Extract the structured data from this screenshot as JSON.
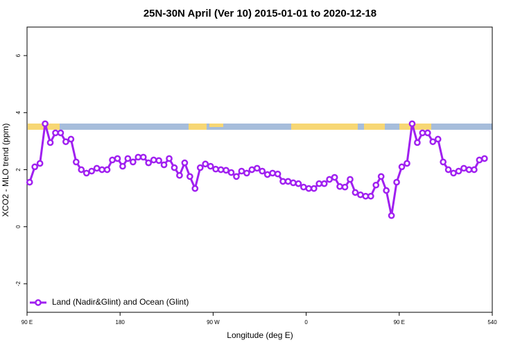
{
  "chart_data": {
    "type": "line",
    "title": "25N-30N April (Ver 10)   2015-01-01 to 2020-12-18",
    "x_label": "Longitude (deg E)",
    "y_label": "XCO2 - MLO trend (ppm)",
    "x": [
      92.5,
      97.5,
      102.5,
      107.5,
      112.5,
      117.5,
      122.5,
      127.5,
      132.5,
      137.5,
      142.5,
      147.5,
      152.5,
      157.5,
      162.5,
      167.5,
      172.5,
      177.5,
      182.5,
      187.5,
      192.5,
      197.5,
      202.5,
      207.5,
      212.5,
      217.5,
      222.5,
      227.5,
      232.5,
      237.5,
      242.5,
      247.5,
      252.5,
      257.5,
      262.5,
      267.5,
      272.5,
      277.5,
      282.5,
      287.5,
      292.5,
      297.5,
      302.5,
      307.5,
      312.5,
      317.5,
      322.5,
      327.5,
      332.5,
      337.5,
      342.5,
      347.5,
      352.5,
      357.5,
      362.5,
      367.5,
      372.5,
      377.5,
      382.5,
      387.5,
      392.5,
      397.5,
      402.5,
      407.5,
      412.5,
      417.5,
      422.5,
      427.5,
      432.5,
      437.5,
      442.5,
      447.5,
      452.5,
      457.5,
      462.5,
      467.5,
      472.5,
      477.5,
      482.5,
      487.5,
      492.5,
      497.5,
      502.5,
      507.5,
      512.5,
      517.5,
      522.5,
      527.5,
      532.5
    ],
    "series": [
      {
        "name": "Land (Nadir&Glint) and Ocean (Glint)",
        "color": "#a020f0",
        "values": [
          1.56,
          2.1,
          2.22,
          3.61,
          2.95,
          3.29,
          3.29,
          2.98,
          3.07,
          2.27,
          2.0,
          1.88,
          1.95,
          2.05,
          2.0,
          2.0,
          2.34,
          2.39,
          2.12,
          2.39,
          2.27,
          2.44,
          2.44,
          2.24,
          2.34,
          2.32,
          2.17,
          2.39,
          2.07,
          1.8,
          2.24,
          1.76,
          1.34,
          2.07,
          2.2,
          2.12,
          2.02,
          2.0,
          1.98,
          1.9,
          1.76,
          1.95,
          1.88,
          2.0,
          2.05,
          1.95,
          1.83,
          1.88,
          1.85,
          1.59,
          1.59,
          1.54,
          1.51,
          1.39,
          1.34,
          1.34,
          1.51,
          1.51,
          1.66,
          1.73,
          1.41,
          1.39,
          1.66,
          1.2,
          1.12,
          1.07,
          1.07,
          1.46,
          1.76,
          1.27,
          0.39,
          1.56,
          2.1,
          2.22,
          3.61,
          2.95,
          3.29,
          3.29,
          2.98,
          3.07,
          2.27,
          2.0,
          1.88,
          1.95,
          2.05,
          2.0,
          2.0,
          2.34,
          2.39
        ]
      }
    ],
    "xlim": [
      90,
      540
    ],
    "xticks": [
      {
        "value": 90,
        "label": "90 E"
      },
      180,
      {
        "value": 270,
        "label": "90 W"
      },
      {
        "value": 360,
        "label": "0"
      },
      {
        "value": 450,
        "label": "90 E"
      },
      540
    ],
    "ylim": [
      -3,
      7
    ],
    "yticks": [
      -2,
      0,
      2,
      4,
      6
    ],
    "grid": false,
    "legend": "bottom-left"
  }
}
